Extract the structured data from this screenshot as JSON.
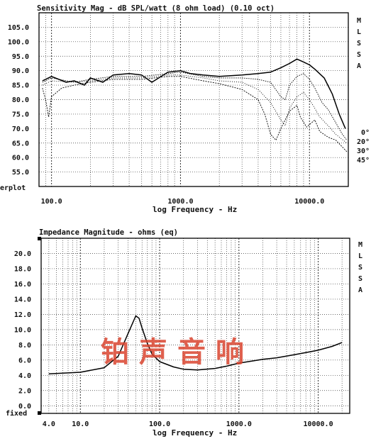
{
  "chart_data": [
    {
      "type": "line",
      "title": "Sensitivity Mag - dB SPL/watt (8 ohm load) (0.10 oct)",
      "xlabel": "log Frequency - Hz",
      "ylabel": "",
      "x_scale": "log",
      "xlim": [
        80,
        20000
      ],
      "ylim": [
        50,
        110
      ],
      "x_ticks": [
        100,
        1000,
        10000
      ],
      "x_tick_labels": [
        "100.0",
        "1000.0",
        "10000.0"
      ],
      "y_ticks": [
        55,
        60,
        65,
        70,
        75,
        80,
        85,
        90,
        95,
        100,
        105
      ],
      "y_tick_labels": [
        "55.0",
        "60.0",
        "65.0",
        "70.0",
        "75.0",
        "80.0",
        "85.0",
        "90.0",
        "95.0",
        "100.0",
        "105.0"
      ],
      "grid": true,
      "side_label": [
        "M",
        "L",
        "S",
        "S",
        "A"
      ],
      "corner_label": "erplot",
      "legend": {
        "placement": "right",
        "entries": [
          "0°",
          "20°",
          "30°",
          "45°"
        ]
      },
      "series": [
        {
          "name": "0°",
          "style": "solid",
          "points": [
            [
              85,
              86.5
            ],
            [
              100,
              88
            ],
            [
              130,
              86
            ],
            [
              150,
              86.5
            ],
            [
              180,
              85
            ],
            [
              200,
              87.5
            ],
            [
              250,
              86
            ],
            [
              300,
              88.5
            ],
            [
              400,
              89
            ],
            [
              500,
              88.5
            ],
            [
              600,
              86
            ],
            [
              800,
              89.5
            ],
            [
              1000,
              90
            ],
            [
              1200,
              89
            ],
            [
              1500,
              88.5
            ],
            [
              2000,
              88
            ],
            [
              3000,
              88.5
            ],
            [
              4000,
              89
            ],
            [
              5000,
              89.5
            ],
            [
              6000,
              91
            ],
            [
              7000,
              92.5
            ],
            [
              8000,
              94
            ],
            [
              9000,
              93
            ],
            [
              10000,
              92
            ],
            [
              11000,
              90.5
            ],
            [
              13000,
              87.5
            ],
            [
              15000,
              82
            ],
            [
              17000,
              75
            ],
            [
              19000,
              70
            ]
          ]
        },
        {
          "name": "20°",
          "style": "dotted",
          "points": [
            [
              85,
              86
            ],
            [
              100,
              87.5
            ],
            [
              150,
              86
            ],
            [
              200,
              87
            ],
            [
              300,
              88
            ],
            [
              500,
              88
            ],
            [
              800,
              89
            ],
            [
              1000,
              89.5
            ],
            [
              1500,
              88
            ],
            [
              2000,
              87.5
            ],
            [
              3000,
              87.5
            ],
            [
              4000,
              87
            ],
            [
              5000,
              86
            ],
            [
              6000,
              81
            ],
            [
              6500,
              80
            ],
            [
              7000,
              85
            ],
            [
              8000,
              88
            ],
            [
              9000,
              89
            ],
            [
              10000,
              87
            ],
            [
              11000,
              84
            ],
            [
              12500,
              79
            ],
            [
              14000,
              76.5
            ],
            [
              16000,
              72
            ],
            [
              18000,
              68
            ],
            [
              19500,
              66
            ]
          ]
        },
        {
          "name": "30°",
          "style": "dotted",
          "points": [
            [
              85,
              85
            ],
            [
              100,
              86.5
            ],
            [
              150,
              86
            ],
            [
              200,
              86.5
            ],
            [
              300,
              87.5
            ],
            [
              500,
              87.5
            ],
            [
              800,
              88.5
            ],
            [
              1000,
              88.5
            ],
            [
              1500,
              87.5
            ],
            [
              2000,
              86.5
            ],
            [
              3000,
              86
            ],
            [
              4000,
              83.5
            ],
            [
              5000,
              79
            ],
            [
              6000,
              73
            ],
            [
              6500,
              71
            ],
            [
              7000,
              77
            ],
            [
              8000,
              81
            ],
            [
              9000,
              82.5
            ],
            [
              10000,
              80
            ],
            [
              11000,
              77
            ],
            [
              12000,
              74
            ],
            [
              14000,
              71
            ],
            [
              16000,
              68
            ],
            [
              19500,
              65
            ]
          ]
        },
        {
          "name": "45°",
          "style": "dotted",
          "points": [
            [
              85,
              84
            ],
            [
              90,
              80
            ],
            [
              95,
              74
            ],
            [
              100,
              81
            ],
            [
              120,
              84
            ],
            [
              150,
              85
            ],
            [
              200,
              86
            ],
            [
              300,
              87
            ],
            [
              500,
              87
            ],
            [
              800,
              88
            ],
            [
              1000,
              88
            ],
            [
              1500,
              86.5
            ],
            [
              2000,
              85.5
            ],
            [
              3000,
              83.5
            ],
            [
              4000,
              80
            ],
            [
              4500,
              75
            ],
            [
              5000,
              68
            ],
            [
              5500,
              66
            ],
            [
              6000,
              70
            ],
            [
              7000,
              76
            ],
            [
              8000,
              78
            ],
            [
              8500,
              74
            ],
            [
              9500,
              70.5
            ],
            [
              11000,
              73
            ],
            [
              12000,
              69
            ],
            [
              14000,
              67
            ],
            [
              16000,
              66
            ],
            [
              19500,
              62
            ]
          ]
        }
      ]
    },
    {
      "type": "line",
      "title": "Impedance Magnitude - ohms (eq)",
      "xlabel": "log Frequency - Hz",
      "ylabel": "",
      "x_scale": "log",
      "xlim": [
        3.2,
        25000
      ],
      "ylim": [
        -1,
        22
      ],
      "x_ticks": [
        4,
        10,
        100,
        1000,
        10000
      ],
      "x_tick_labels": [
        "4.0",
        "10.0",
        "100.0",
        "1000.0",
        "10000.0"
      ],
      "y_ticks": [
        0,
        2,
        4,
        6,
        8,
        10,
        12,
        14,
        16,
        18,
        20
      ],
      "y_tick_labels": [
        "0.0",
        "2.0",
        "4.0",
        "6.0",
        "8.0",
        "10.0",
        "12.0",
        "14.0",
        "16.0",
        "18.0",
        "20.0"
      ],
      "grid": true,
      "side_label": [
        "M",
        "L",
        "S",
        "S",
        "A"
      ],
      "corner_label": "fixed",
      "series": [
        {
          "name": "",
          "style": "solid",
          "points": [
            [
              4,
              4.2
            ],
            [
              10,
              4.4
            ],
            [
              20,
              5
            ],
            [
              30,
              6.5
            ],
            [
              40,
              9.5
            ],
            [
              50,
              11.8
            ],
            [
              55,
              11.5
            ],
            [
              60,
              10.2
            ],
            [
              70,
              8.2
            ],
            [
              80,
              6.8
            ],
            [
              100,
              5.8
            ],
            [
              150,
              5.1
            ],
            [
              200,
              4.8
            ],
            [
              300,
              4.7
            ],
            [
              500,
              4.9
            ],
            [
              700,
              5.2
            ],
            [
              1000,
              5.6
            ],
            [
              2000,
              6.1
            ],
            [
              3000,
              6.3
            ],
            [
              5000,
              6.7
            ],
            [
              8000,
              7.1
            ],
            [
              10000,
              7.3
            ],
            [
              15000,
              7.8
            ],
            [
              20000,
              8.3
            ]
          ]
        }
      ]
    }
  ],
  "watermark": "铂声音响"
}
